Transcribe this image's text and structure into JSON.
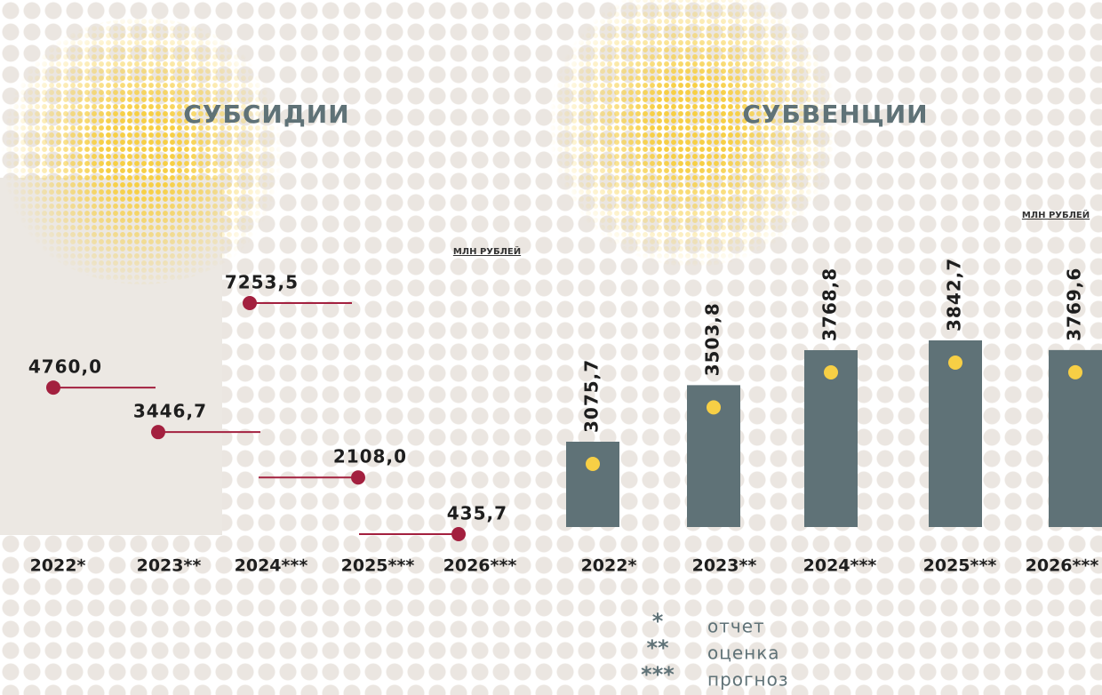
{
  "chart_data": [
    {
      "type": "lollipop",
      "title": "СУБСИДИИ",
      "unit": "МЛН РУБЛЕЙ",
      "categories": [
        "2022*",
        "2023**",
        "2024***",
        "2025***",
        "2026***"
      ],
      "values": [
        4760.0,
        3446.7,
        7253.5,
        2108.0,
        435.7
      ],
      "value_labels": [
        "4760,0",
        "3446,7",
        "7253,5",
        "2108,0",
        "435,7"
      ],
      "color": "#a3203f"
    },
    {
      "type": "bar",
      "title": "СУБВЕНЦИИ",
      "unit": "МЛН РУБЛЕЙ",
      "categories": [
        "2022*",
        "2023**",
        "2024***",
        "2025***",
        "2026***"
      ],
      "values": [
        3075.7,
        3503.8,
        3768.8,
        3842.7,
        3769.6
      ],
      "value_labels": [
        "3075,7",
        "3503,8",
        "3768,8",
        "3842,7",
        "3769,6"
      ],
      "color": "#5f7277"
    }
  ],
  "notes": [
    {
      "mark": "*",
      "label": "отчет"
    },
    {
      "mark": "**",
      "label": "оценка"
    },
    {
      "mark": "***",
      "label": "прогноз"
    }
  ]
}
